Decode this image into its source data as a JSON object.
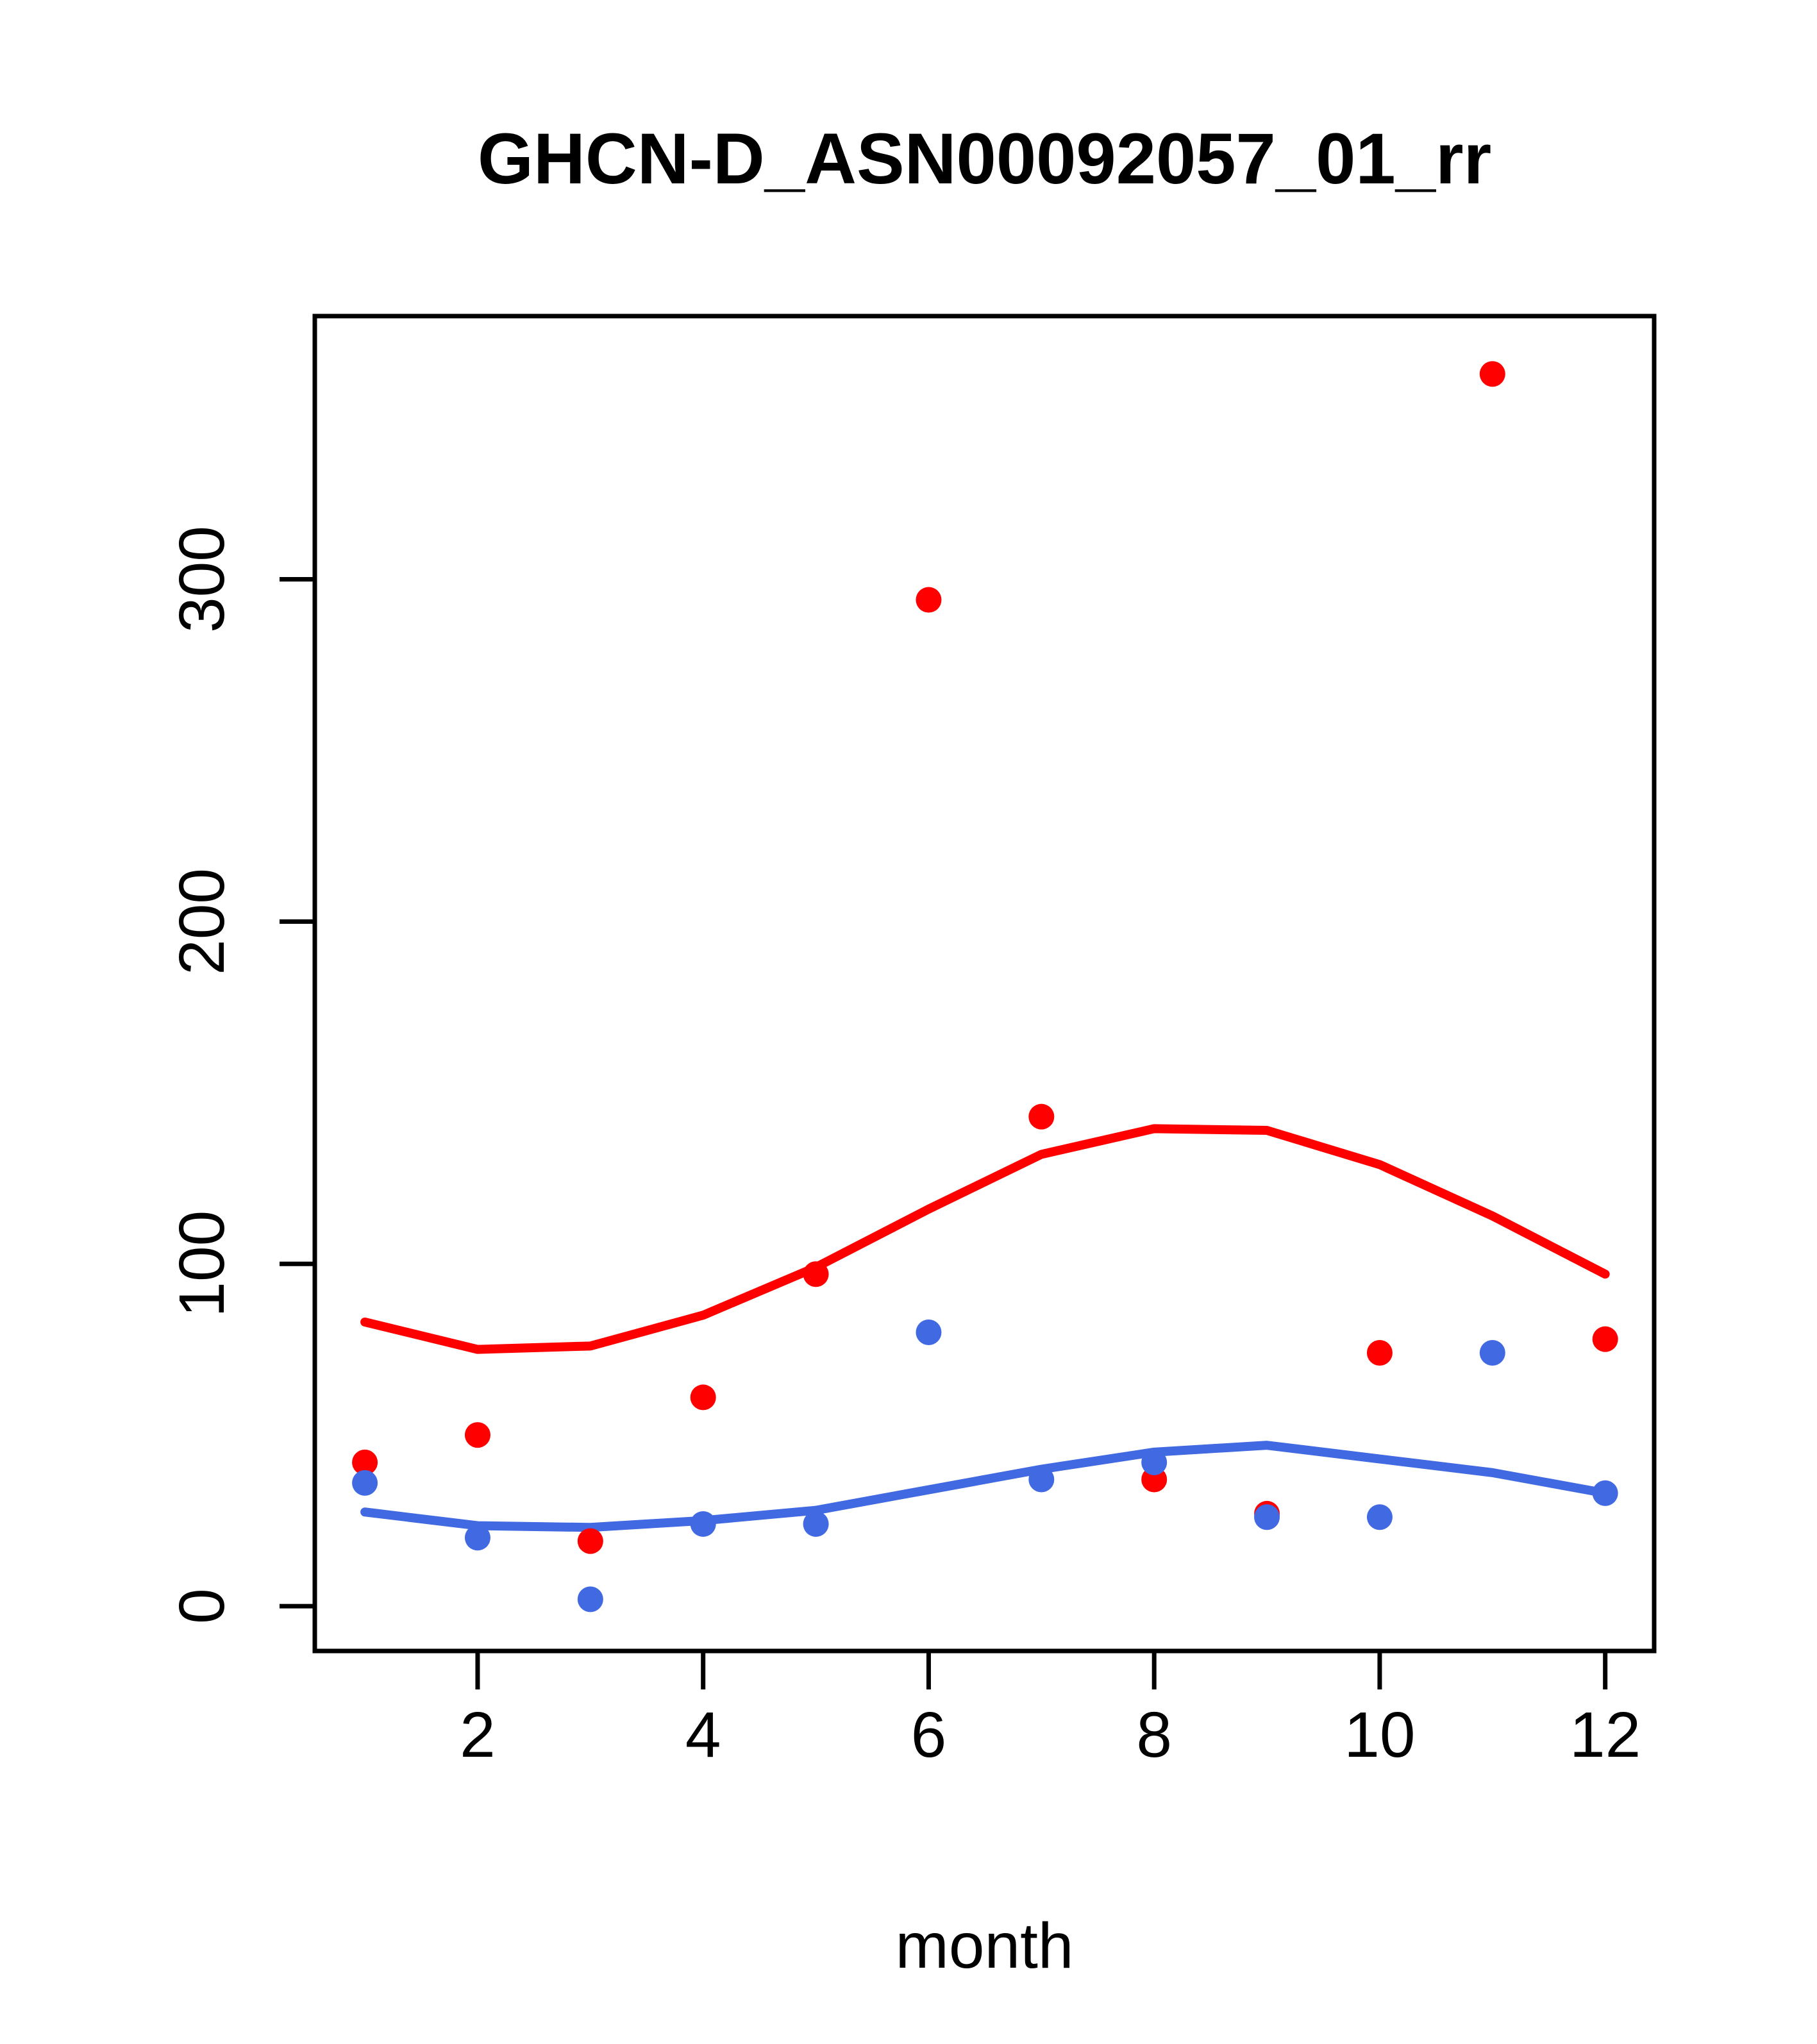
{
  "chart_data": {
    "type": "scatter",
    "title": "GHCN-D_ASN00092057_01_rr",
    "xlabel": "month",
    "ylabel": "",
    "x_ticks": [
      2,
      4,
      6,
      8,
      10,
      12
    ],
    "y_ticks": [
      0,
      100,
      200,
      300
    ],
    "xlim": [
      0.556,
      12.434
    ],
    "ylim": [
      -13.1,
      376.9
    ],
    "grid": false,
    "legend": "none",
    "months": [
      1,
      2,
      3,
      4,
      5,
      6,
      7,
      8,
      9,
      10,
      11,
      12
    ],
    "colors": {
      "red": "#ff0000",
      "blue": "#4169e1",
      "axis": "#000000"
    },
    "marker_radius": 20,
    "smooth_line_width": 14,
    "series": [
      {
        "name": "red-points",
        "type": "scatter",
        "color_key": "red",
        "values": [
          42,
          50,
          19,
          61,
          97,
          294,
          143,
          37,
          27,
          74,
          360,
          78
        ]
      },
      {
        "name": "blue-points",
        "type": "scatter",
        "color_key": "blue",
        "values": [
          36,
          20,
          2,
          24,
          24,
          80,
          37,
          42,
          26,
          26,
          74,
          33
        ]
      },
      {
        "name": "red-smooth",
        "type": "line",
        "color_key": "red",
        "values": [
          83,
          75,
          76,
          85,
          99,
          116,
          132,
          139.5,
          139,
          129,
          114,
          97
        ]
      },
      {
        "name": "blue-smooth",
        "type": "line",
        "color_key": "blue",
        "values": [
          27.5,
          23.5,
          23,
          25,
          28,
          34,
          40,
          45,
          47,
          43,
          39,
          33
        ]
      }
    ]
  }
}
